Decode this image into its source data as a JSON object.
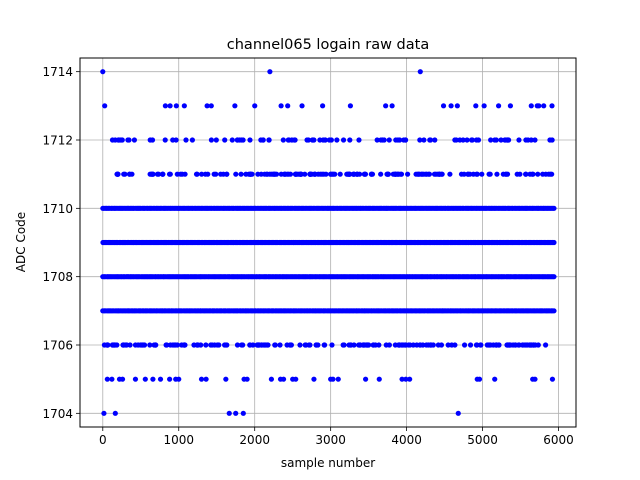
{
  "chart_data": {
    "type": "scatter",
    "title": "channel065 logain raw data",
    "xlabel": "sample number",
    "ylabel": "ADC Code",
    "xlim": [
      -300,
      6230
    ],
    "ylim": [
      1703.6,
      1714.4
    ],
    "xticks": [
      0,
      1000,
      2000,
      3000,
      4000,
      5000,
      6000
    ],
    "yticks": [
      1704,
      1706,
      1708,
      1710,
      1712,
      1714
    ],
    "grid": true,
    "marker_color": "#0000ff",
    "series": [
      {
        "dense_levels": [
          {
            "y": 1707,
            "x_min": 0,
            "x_max": 5940
          },
          {
            "y": 1708,
            "x_min": 0,
            "x_max": 5940
          },
          {
            "y": 1709,
            "x_min": 0,
            "x_max": 5940
          },
          {
            "y": 1710,
            "x_min": 0,
            "x_max": 5940
          }
        ],
        "points": [
          {
            "x": 15,
            "y": 1704
          },
          {
            "x": 165,
            "y": 1704
          },
          {
            "x": 1665,
            "y": 1704
          },
          {
            "x": 1750,
            "y": 1704
          },
          {
            "x": 1850,
            "y": 1704
          },
          {
            "x": 4680,
            "y": 1704
          },
          {
            "x": 60,
            "y": 1705
          },
          {
            "x": 120,
            "y": 1705
          },
          {
            "x": 220,
            "y": 1705
          },
          {
            "x": 260,
            "y": 1705
          },
          {
            "x": 430,
            "y": 1705
          },
          {
            "x": 560,
            "y": 1705
          },
          {
            "x": 660,
            "y": 1705
          },
          {
            "x": 760,
            "y": 1705
          },
          {
            "x": 880,
            "y": 1705
          },
          {
            "x": 960,
            "y": 1705
          },
          {
            "x": 1000,
            "y": 1705
          },
          {
            "x": 1300,
            "y": 1705
          },
          {
            "x": 1360,
            "y": 1705
          },
          {
            "x": 1620,
            "y": 1705
          },
          {
            "x": 1860,
            "y": 1705
          },
          {
            "x": 1900,
            "y": 1705
          },
          {
            "x": 2220,
            "y": 1705
          },
          {
            "x": 2340,
            "y": 1705
          },
          {
            "x": 2380,
            "y": 1705
          },
          {
            "x": 2500,
            "y": 1705
          },
          {
            "x": 2540,
            "y": 1705
          },
          {
            "x": 2780,
            "y": 1705
          },
          {
            "x": 3000,
            "y": 1705
          },
          {
            "x": 3030,
            "y": 1705
          },
          {
            "x": 3100,
            "y": 1705
          },
          {
            "x": 3460,
            "y": 1705
          },
          {
            "x": 3640,
            "y": 1705
          },
          {
            "x": 3940,
            "y": 1705
          },
          {
            "x": 3990,
            "y": 1705
          },
          {
            "x": 4040,
            "y": 1705
          },
          {
            "x": 4930,
            "y": 1705
          },
          {
            "x": 4960,
            "y": 1705
          },
          {
            "x": 5160,
            "y": 1705
          },
          {
            "x": 5660,
            "y": 1705
          },
          {
            "x": 5690,
            "y": 1705
          },
          {
            "x": 5920,
            "y": 1705
          },
          {
            "x": 0,
            "y": 1714
          },
          {
            "x": 2200,
            "y": 1714
          },
          {
            "x": 4180,
            "y": 1714
          }
        ],
        "scatter_levels": [
          {
            "y": 1706,
            "count": 190,
            "x_min": 0,
            "x_max": 5930
          },
          {
            "y": 1711,
            "count": 180,
            "x_min": 20,
            "x_max": 5930
          },
          {
            "y": 1712,
            "count": 95,
            "x_min": 10,
            "x_max": 5920
          },
          {
            "y": 1713,
            "count": 28,
            "x_min": 10,
            "x_max": 5920
          }
        ]
      }
    ]
  }
}
